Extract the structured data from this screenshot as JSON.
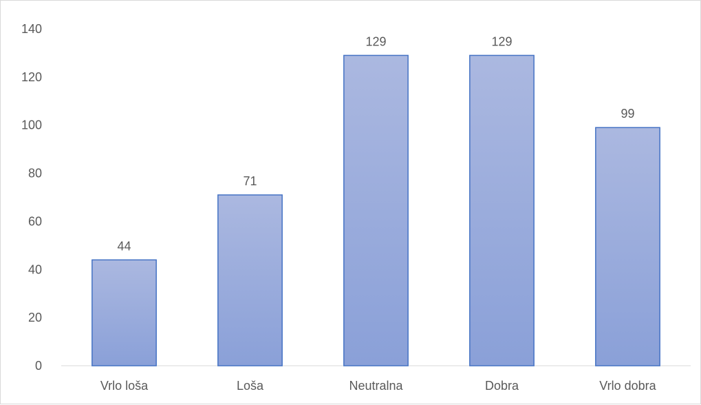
{
  "chart_data": {
    "type": "bar",
    "categories": [
      "Vrlo loša",
      "Loša",
      "Neutralna",
      "Dobra",
      "Vrlo dobra"
    ],
    "values": [
      44,
      71,
      129,
      129,
      99
    ],
    "data_labels": [
      "44",
      "71",
      "129",
      "129",
      "99"
    ],
    "y_ticks": [
      "0",
      "20",
      "40",
      "60",
      "80",
      "100",
      "120",
      "140"
    ],
    "ylim": [
      0,
      140
    ],
    "title": "",
    "xlabel": "",
    "ylabel": "",
    "grid": false,
    "legend": "none",
    "colors": {
      "bar_fill_top": "#abb8e0",
      "bar_fill_bottom": "#8aa0d8",
      "bar_stroke": "#4472c4",
      "axis": "#d9d9d9",
      "text": "#595959"
    }
  }
}
